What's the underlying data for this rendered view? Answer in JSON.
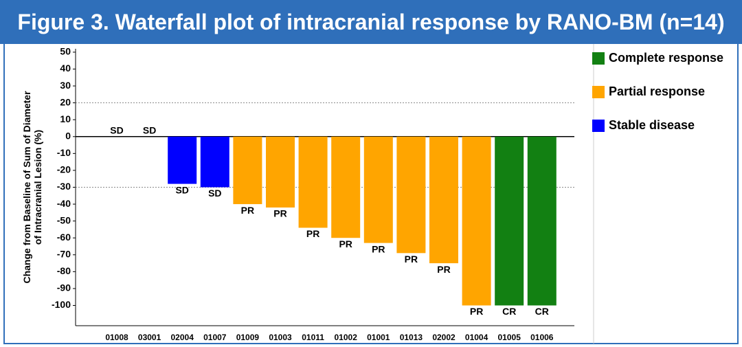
{
  "chart_data": {
    "type": "waterfall",
    "title": "Figure 3. Waterfall plot of intracranial response by RANO-BM (n=14)",
    "y_label": [
      "Change from Baseline of Sum of Diameter",
      "of Intracranial Lesion (%)"
    ],
    "categories": [
      "01008",
      "03001",
      "02004",
      "01007",
      "01009",
      "01003",
      "01011",
      "01002",
      "01001",
      "01013",
      "02002",
      "01004",
      "01005",
      "01006"
    ],
    "values": [
      0,
      0,
      -28,
      -30,
      -40,
      -42,
      -54,
      -60,
      -63,
      -69,
      -75,
      -100,
      -100,
      -100
    ],
    "responses": [
      "SD",
      "SD",
      "SD",
      "SD",
      "PR",
      "PR",
      "PR",
      "PR",
      "PR",
      "PR",
      "PR",
      "PR",
      "CR",
      "CR"
    ],
    "legend": [
      {
        "code": "CR",
        "name": "Complete response",
        "color": "#128012"
      },
      {
        "code": "PR",
        "name": "Partial response",
        "color": "#ffa500"
      },
      {
        "code": "SD",
        "name": "Stable disease",
        "color": "#0000ff"
      }
    ],
    "reference_lines": [
      20,
      -30
    ],
    "ylim": [
      -112,
      52
    ],
    "yticks": [
      50,
      40,
      30,
      20,
      10,
      0,
      -10,
      -20,
      -30,
      -40,
      -50,
      -60,
      -70,
      -80,
      -90,
      -100
    ]
  }
}
